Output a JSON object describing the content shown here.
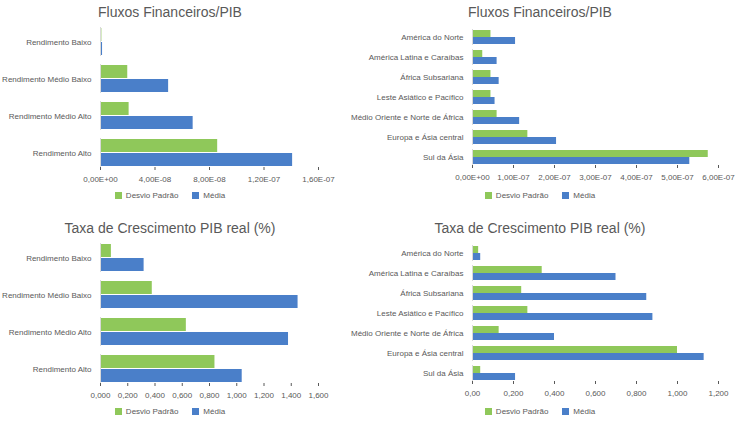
{
  "chart_data": [
    {
      "type": "bar",
      "orientation": "horizontal",
      "title": "Fluxos Financeiros/PIB",
      "categories": [
        "Rendimento Baixo",
        "Rendimento Médio Baixo",
        "Rendimento Médio Alto",
        "Rendimento Alto"
      ],
      "series": [
        {
          "name": "Desvio Padrão",
          "color": "#8fc85a",
          "values": [
            1e-09,
            2e-08,
            2.1e-08,
            8.6e-08
          ]
        },
        {
          "name": "Média",
          "color": "#4a7fc9",
          "values": [
            1.5e-09,
            5e-08,
            6.8e-08,
            1.41e-07
          ]
        }
      ],
      "xlim": [
        0,
        1.6e-07
      ],
      "xticks": [
        {
          "value": 0,
          "label": "0,00E+00"
        },
        {
          "value": 4e-08,
          "label": "4,00E-08"
        },
        {
          "value": 8e-08,
          "label": "8,00E-08"
        },
        {
          "value": 1.2e-07,
          "label": "1,20E-07"
        },
        {
          "value": 1.6e-07,
          "label": "1,60E-07"
        }
      ],
      "grid": false,
      "legend": "bottom"
    },
    {
      "type": "bar",
      "orientation": "horizontal",
      "title": "Fluxos Financeiros/PIB",
      "categories": [
        "América do Norte",
        "América Latina e Caraíbas",
        "África Subsariana",
        "Leste Asiático e Pacífico",
        "Médio Oriente e Norte de África",
        "Europa e Ásia central",
        "Sul da Ásia"
      ],
      "series": [
        {
          "name": "Desvio Padrão",
          "color": "#8fc85a",
          "values": [
            4.5e-08,
            2.5e-08,
            4.5e-08,
            4.5e-08,
            6e-08,
            1.35e-07,
            5.75e-07
          ]
        },
        {
          "name": "Média",
          "color": "#4a7fc9",
          "values": [
            1.05e-07,
            6e-08,
            6.5e-08,
            5.5e-08,
            1.15e-07,
            2.05e-07,
            5.3e-07
          ]
        }
      ],
      "xlim": [
        0,
        6e-07
      ],
      "xticks": [
        {
          "value": 0,
          "label": "0,00E+00"
        },
        {
          "value": 1e-07,
          "label": "1,00E-07"
        },
        {
          "value": 2e-07,
          "label": "2,00E-07"
        },
        {
          "value": 3e-07,
          "label": "3,00E-07"
        },
        {
          "value": 4e-07,
          "label": "4,00E-07"
        },
        {
          "value": 5e-07,
          "label": "5,00E-07"
        },
        {
          "value": 6e-07,
          "label": "6,00E-07"
        }
      ],
      "grid": false,
      "legend": "bottom"
    },
    {
      "type": "bar",
      "orientation": "horizontal",
      "title": "Taxa de Crescimento PIB real (%)",
      "categories": [
        "Rendimento Baixo",
        "Rendimento Médio Baixo",
        "Rendimento Médio Alto",
        "Rendimento Alto"
      ],
      "series": [
        {
          "name": "Desvio Padrão",
          "color": "#8fc85a",
          "values": [
            0.08,
            0.38,
            0.63,
            0.84
          ]
        },
        {
          "name": "Média",
          "color": "#4a7fc9",
          "values": [
            0.32,
            1.45,
            1.38,
            1.04
          ]
        }
      ],
      "xlim": [
        0,
        1.6
      ],
      "xticks": [
        {
          "value": 0,
          "label": "0,000"
        },
        {
          "value": 0.2,
          "label": "0,200"
        },
        {
          "value": 0.4,
          "label": "0,400"
        },
        {
          "value": 0.6,
          "label": "0,600"
        },
        {
          "value": 0.8,
          "label": "0,800"
        },
        {
          "value": 1.0,
          "label": "1,000"
        },
        {
          "value": 1.2,
          "label": "1,200"
        },
        {
          "value": 1.4,
          "label": "1,400"
        },
        {
          "value": 1.6,
          "label": "1,600"
        }
      ],
      "grid": false,
      "legend": "bottom"
    },
    {
      "type": "bar",
      "orientation": "horizontal",
      "title": "Taxa de Crescimento PIB real (%)",
      "categories": [
        "América do Norte",
        "América Latina e Caraíbas",
        "África Subsariana",
        "Leste Asiático e Pacífico",
        "Médio Oriente e Norte de África",
        "Europa e Ásia central",
        "Sul da Ásia"
      ],
      "series": [
        {
          "name": "Desvio Padrão",
          "color": "#8fc85a",
          "values": [
            0.03,
            0.34,
            0.24,
            0.27,
            0.13,
            1.0,
            0.04
          ]
        },
        {
          "name": "Média",
          "color": "#4a7fc9",
          "values": [
            0.04,
            0.7,
            0.85,
            0.88,
            0.4,
            1.13,
            0.21
          ]
        }
      ],
      "xlim": [
        0,
        1.2
      ],
      "xticks": [
        {
          "value": 0,
          "label": "0,00"
        },
        {
          "value": 0.2,
          "label": "0,200"
        },
        {
          "value": 0.4,
          "label": "0,400"
        },
        {
          "value": 0.6,
          "label": "0,600"
        },
        {
          "value": 0.8,
          "label": "0,800"
        },
        {
          "value": 1.0,
          "label": "1,000"
        },
        {
          "value": 1.2,
          "label": "1,200"
        }
      ],
      "grid": false,
      "legend": "bottom"
    }
  ]
}
